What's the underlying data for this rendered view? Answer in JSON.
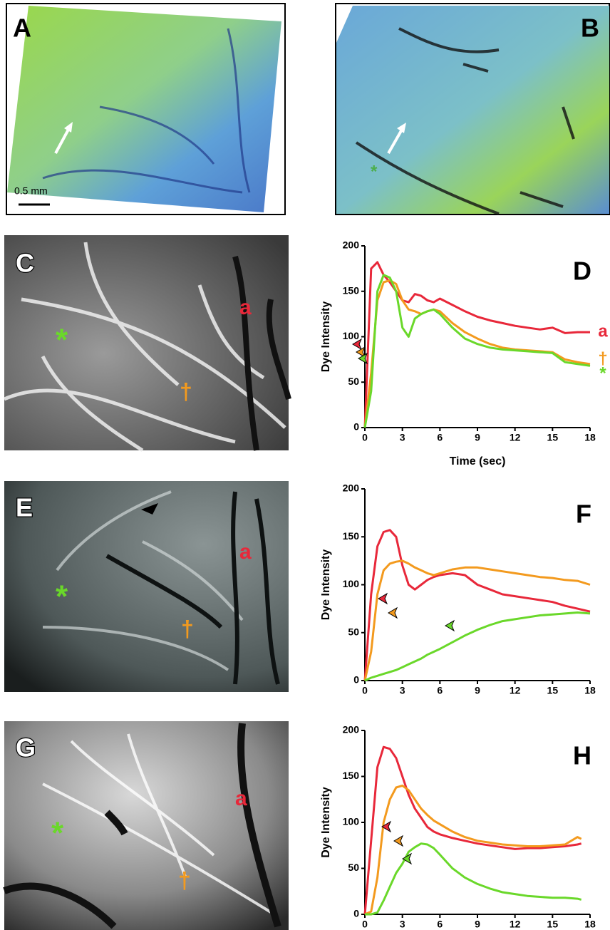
{
  "images": [
    {
      "label": "A",
      "scale": "0.5 mm"
    },
    {
      "label": "B",
      "marker": "*"
    },
    {
      "label": "C",
      "artery": "a",
      "star": "*",
      "dagger": "†"
    },
    {
      "label": "E",
      "artery": "a",
      "star": "*",
      "dagger": "†"
    },
    {
      "label": "G",
      "artery": "a",
      "star": "*",
      "dagger": "†"
    }
  ],
  "chart_data": [
    {
      "type": "line",
      "title": "D",
      "x_label": "Time (sec)",
      "y_label": "Dye Intensity",
      "x": [
        0,
        0.5,
        1,
        1.5,
        2,
        2.5,
        3,
        3.5,
        4,
        4.5,
        5,
        5.5,
        6,
        7,
        8,
        9,
        10,
        11,
        12,
        13,
        14,
        15,
        16,
        17,
        18
      ],
      "series": [
        {
          "name": "a",
          "color": "#e8283a",
          "values": [
            0,
            175,
            182,
            168,
            160,
            150,
            140,
            138,
            147,
            145,
            140,
            138,
            142,
            135,
            128,
            122,
            118,
            115,
            112,
            110,
            108,
            110,
            104,
            105,
            105
          ]
        },
        {
          "name": "†",
          "color": "#f39a1e",
          "values": [
            0,
            60,
            140,
            160,
            162,
            158,
            140,
            130,
            128,
            125,
            128,
            130,
            128,
            115,
            105,
            98,
            92,
            88,
            86,
            85,
            84,
            83,
            75,
            72,
            70
          ]
        },
        {
          "name": "*",
          "color": "#6ad82a",
          "values": [
            0,
            40,
            150,
            168,
            165,
            150,
            110,
            100,
            120,
            125,
            128,
            130,
            125,
            110,
            98,
            92,
            88,
            86,
            85,
            84,
            83,
            82,
            72,
            70,
            68
          ]
        }
      ],
      "xlim": [
        0,
        18
      ],
      "xticks": [
        0,
        3,
        6,
        9,
        12,
        15,
        18
      ],
      "ylim": [
        0,
        200
      ],
      "yticks": [
        0,
        50,
        100,
        150,
        200
      ]
    },
    {
      "type": "line",
      "title": "F",
      "y_label": "Dye Intensity",
      "x": [
        0,
        0.5,
        1,
        1.5,
        2,
        2.5,
        3,
        3.5,
        4,
        4.5,
        5,
        5.5,
        6,
        7,
        8,
        9,
        10,
        11,
        12,
        13,
        14,
        15,
        16,
        17,
        18
      ],
      "series": [
        {
          "color": "#e8283a",
          "values": [
            0,
            90,
            140,
            155,
            157,
            150,
            120,
            100,
            95,
            100,
            105,
            108,
            110,
            112,
            110,
            100,
            95,
            90,
            88,
            86,
            84,
            82,
            78,
            75,
            72
          ]
        },
        {
          "color": "#f39a1e",
          "values": [
            0,
            30,
            90,
            115,
            122,
            124,
            125,
            122,
            118,
            115,
            112,
            110,
            112,
            116,
            118,
            118,
            116,
            114,
            112,
            110,
            108,
            107,
            105,
            104,
            100
          ]
        },
        {
          "color": "#6ad82a",
          "values": [
            0,
            3,
            5,
            7,
            9,
            11,
            14,
            17,
            20,
            23,
            27,
            30,
            33,
            40,
            47,
            53,
            58,
            62,
            64,
            66,
            68,
            69,
            70,
            71,
            70
          ]
        }
      ],
      "xlim": [
        0,
        18
      ],
      "xticks": [
        0,
        3,
        6,
        9,
        12,
        15,
        18
      ],
      "ylim": [
        0,
        200
      ],
      "yticks": [
        0,
        50,
        100,
        150,
        200
      ]
    },
    {
      "type": "line",
      "title": "H",
      "y_label": "Dye Intensity",
      "x": [
        0,
        0.5,
        1,
        1.5,
        2,
        2.5,
        3,
        3.5,
        4,
        4.5,
        5,
        5.5,
        6,
        7,
        8,
        9,
        10,
        11,
        12,
        13,
        14,
        15,
        16,
        17,
        17.3
      ],
      "series": [
        {
          "color": "#e8283a",
          "values": [
            0,
            80,
            160,
            182,
            180,
            170,
            150,
            130,
            115,
            105,
            95,
            90,
            87,
            83,
            80,
            77,
            75,
            73,
            71,
            72,
            72,
            73,
            74,
            76,
            77
          ]
        },
        {
          "color": "#f39a1e",
          "values": [
            0,
            3,
            40,
            100,
            125,
            138,
            140,
            135,
            125,
            115,
            108,
            102,
            98,
            90,
            84,
            80,
            78,
            76,
            75,
            74,
            74,
            75,
            76,
            84,
            82
          ]
        },
        {
          "color": "#6ad82a",
          "values": [
            0,
            0,
            2,
            15,
            30,
            45,
            55,
            68,
            73,
            77,
            76,
            72,
            65,
            50,
            40,
            33,
            28,
            24,
            22,
            20,
            19,
            18,
            18,
            17,
            16
          ]
        }
      ],
      "xlim": [
        0,
        18
      ],
      "xticks": [
        0,
        3,
        6,
        9,
        12,
        15,
        18
      ],
      "ylim": [
        0,
        200
      ],
      "yticks": [
        0,
        50,
        100,
        150,
        200
      ]
    }
  ]
}
